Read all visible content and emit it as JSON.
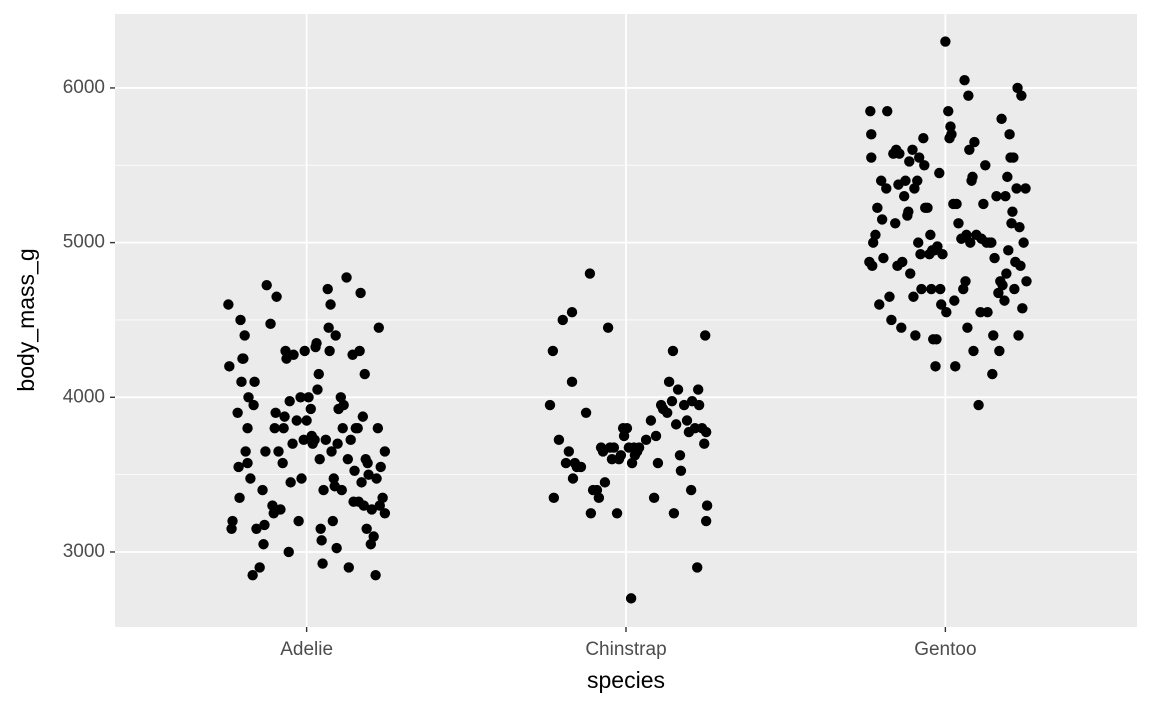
{
  "chart_data": {
    "type": "scatter",
    "x_label": "species",
    "y_label": "body_mass_g",
    "xlim": [
      0.4,
      3.6
    ],
    "xticks": [
      {
        "value": 1,
        "label": "Adelie"
      },
      {
        "value": 2,
        "label": "Chinstrap"
      },
      {
        "value": 3,
        "label": "Gentoo"
      }
    ],
    "ylim": [
      2515,
      6478
    ],
    "yticks": [
      3000,
      4000,
      5000,
      6000
    ],
    "y_minor_ticks": [
      3500,
      4500,
      5500
    ],
    "grid": true,
    "color": "#000000",
    "x": [
      0.755,
      0.758,
      0.768,
      0.765,
      0.784,
      0.787,
      0.79,
      0.793,
      0.796,
      0.799,
      0.802,
      0.806,
      0.809,
      0.815,
      0.815,
      0.818,
      0.824,
      0.831,
      0.834,
      0.837,
      0.843,
      0.853,
      0.862,
      0.865,
      0.868,
      0.871,
      0.875,
      0.887,
      0.893,
      0.897,
      0.9,
      0.903,
      0.906,
      0.912,
      0.918,
      0.925,
      0.928,
      0.931,
      0.934,
      0.937,
      0.944,
      0.947,
      0.95,
      0.956,
      0.959,
      0.969,
      0.975,
      0.981,
      0.984,
      0.991,
      0.994,
      1.0,
      1.006,
      1.013,
      1.016,
      1.019,
      1.025,
      1.028,
      1.031,
      1.034,
      1.038,
      1.041,
      1.044,
      1.047,
      1.05,
      1.053,
      1.06,
      1.066,
      1.069,
      1.072,
      1.075,
      1.078,
      1.082,
      1.085,
      1.088,
      1.091,
      1.094,
      1.097,
      1.1,
      1.107,
      1.11,
      1.113,
      1.116,
      1.125,
      1.129,
      1.132,
      1.138,
      1.144,
      1.147,
      1.15,
      1.154,
      1.16,
      1.163,
      1.166,
      1.169,
      1.172,
      1.176,
      1.179,
      1.182,
      1.185,
      1.188,
      1.191,
      1.194,
      1.201,
      1.204,
      1.21,
      1.216,
      1.219,
      1.223,
      1.226,
      1.229,
      1.232,
      1.238,
      1.245,
      1.245,
      1.762,
      1.771,
      1.774,
      1.79,
      1.802,
      1.812,
      1.821,
      1.831,
      1.831,
      1.834,
      1.84,
      1.846,
      1.859,
      1.875,
      1.887,
      1.89,
      1.897,
      1.909,
      1.915,
      1.922,
      1.928,
      1.934,
      1.944,
      1.95,
      1.956,
      1.962,
      1.972,
      1.978,
      1.984,
      1.991,
      1.994,
      2.003,
      2.009,
      2.016,
      2.019,
      2.025,
      2.028,
      2.035,
      2.041,
      2.063,
      2.078,
      2.088,
      2.094,
      2.1,
      2.11,
      2.116,
      2.129,
      2.135,
      2.144,
      2.147,
      2.15,
      2.157,
      2.163,
      2.169,
      2.172,
      2.182,
      2.191,
      2.197,
      2.204,
      2.207,
      2.216,
      2.223,
      2.226,
      2.229,
      2.238,
      2.245,
      2.248,
      2.251,
      2.254,
      2.251,
      2.762,
      2.765,
      2.768,
      2.768,
      2.771,
      2.774,
      2.781,
      2.787,
      2.793,
      2.799,
      2.802,
      2.806,
      2.815,
      2.818,
      2.825,
      2.831,
      2.837,
      2.843,
      2.846,
      2.85,
      2.853,
      2.856,
      2.862,
      2.865,
      2.871,
      2.875,
      2.881,
      2.884,
      2.887,
      2.89,
      2.897,
      2.9,
      2.903,
      2.906,
      2.912,
      2.915,
      2.918,
      2.922,
      2.925,
      2.931,
      2.934,
      2.937,
      2.944,
      2.95,
      2.953,
      2.956,
      2.959,
      2.962,
      2.966,
      2.969,
      2.972,
      2.975,
      2.981,
      2.984,
      2.987,
      2.991,
      3.0,
      3.003,
      3.009,
      3.013,
      3.016,
      3.019,
      3.025,
      3.028,
      3.031,
      3.035,
      3.041,
      3.05,
      3.056,
      3.06,
      3.063,
      3.066,
      3.069,
      3.072,
      3.075,
      3.078,
      3.082,
      3.085,
      3.088,
      3.091,
      3.097,
      3.104,
      3.11,
      3.113,
      3.119,
      3.125,
      3.129,
      3.132,
      3.138,
      3.144,
      3.147,
      3.15,
      3.154,
      3.16,
      3.166,
      3.169,
      3.172,
      3.176,
      3.179,
      3.185,
      3.188,
      3.191,
      3.194,
      3.197,
      3.201,
      3.204,
      3.207,
      3.21,
      3.213,
      3.216,
      3.219,
      3.223,
      3.226,
      3.229,
      3.232,
      3.235,
      3.238,
      3.241,
      3.245,
      3.251,
      3.254
    ],
    "values": [
      4600,
      4200,
      3200,
      3150,
      3900,
      3550,
      3350,
      4500,
      4100,
      4250,
      4250,
      4400,
      3650,
      3800,
      3575,
      4000,
      3475,
      2850,
      3950,
      4100,
      3150,
      2900,
      3400,
      3050,
      3175,
      3650,
      4725,
      4475,
      3300,
      3250,
      3800,
      3900,
      4650,
      3650,
      3275,
      3575,
      3800,
      3875,
      4300,
      4250,
      3000,
      3975,
      3450,
      3700,
      4275,
      3850,
      3200,
      4000,
      3475,
      3725,
      4300,
      3850,
      4000,
      3925,
      3750,
      3700,
      3725,
      4325,
      4350,
      4050,
      4150,
      3600,
      3150,
      3075,
      2925,
      3400,
      3725,
      4700,
      4450,
      4300,
      4600,
      3650,
      3200,
      3475,
      3425,
      4400,
      3025,
      3700,
      3925,
      4000,
      3400,
      3800,
      3950,
      4775,
      3600,
      2900,
      3725,
      4275,
      3325,
      3525,
      3800,
      3800,
      3325,
      4300,
      4675,
      3450,
      3875,
      3300,
      4150,
      3600,
      3150,
      3575,
      3500,
      3050,
      3275,
      3100,
      2850,
      3475,
      3800,
      4450,
      3300,
      3550,
      3350,
      3250,
      3650,
      3950,
      4300,
      3350,
      3725,
      4500,
      3575,
      3650,
      4550,
      4100,
      3475,
      3575,
      3550,
      3550,
      3900,
      4800,
      3250,
      3400,
      3400,
      3350,
      3675,
      3650,
      3450,
      4450,
      3675,
      3600,
      3675,
      3250,
      3600,
      3625,
      3800,
      3750,
      3800,
      3675,
      2700,
      3575,
      3675,
      3625,
      3650,
      3675,
      3725,
      3850,
      3350,
      3750,
      3575,
      3950,
      3925,
      3900,
      4100,
      3975,
      4300,
      3250,
      3825,
      4050,
      3625,
      3525,
      3950,
      3850,
      3775,
      3400,
      3975,
      3800,
      2900,
      4050,
      3950,
      3800,
      3700,
      4400,
      3775,
      3300,
      3200,
      4875,
      5850,
      5550,
      5700,
      4850,
      5000,
      5050,
      5225,
      4600,
      5400,
      5150,
      4900,
      5350,
      5850,
      4650,
      4500,
      5575,
      5125,
      5600,
      4850,
      5375,
      5575,
      4450,
      4875,
      5300,
      5400,
      5175,
      5200,
      5525,
      4800,
      5600,
      4650,
      5350,
      4400,
      5400,
      5000,
      5550,
      4925,
      4700,
      5675,
      5500,
      5225,
      5225,
      4925,
      5050,
      4700,
      4950,
      4375,
      4950,
      4200,
      4375,
      4975,
      5450,
      4700,
      4600,
      4925,
      6300,
      4550,
      5850,
      5675,
      5750,
      5700,
      5250,
      4625,
      4200,
      5250,
      5125,
      5025,
      4700,
      6050,
      4750,
      5050,
      4450,
      5950,
      5600,
      5000,
      5400,
      5425,
      4300,
      5650,
      5050,
      3950,
      4550,
      5025,
      5250,
      5500,
      5000,
      4550,
      5000,
      5000,
      4150,
      4400,
      4900,
      5300,
      4675,
      4300,
      4750,
      5800,
      4725,
      4625,
      5300,
      4800,
      5425,
      4950,
      5700,
      5550,
      5125,
      5200,
      5550,
      4700,
      4875,
      5350,
      6000,
      4400,
      5100,
      4850,
      5950,
      4575,
      5000,
      5350,
      4750
    ]
  }
}
